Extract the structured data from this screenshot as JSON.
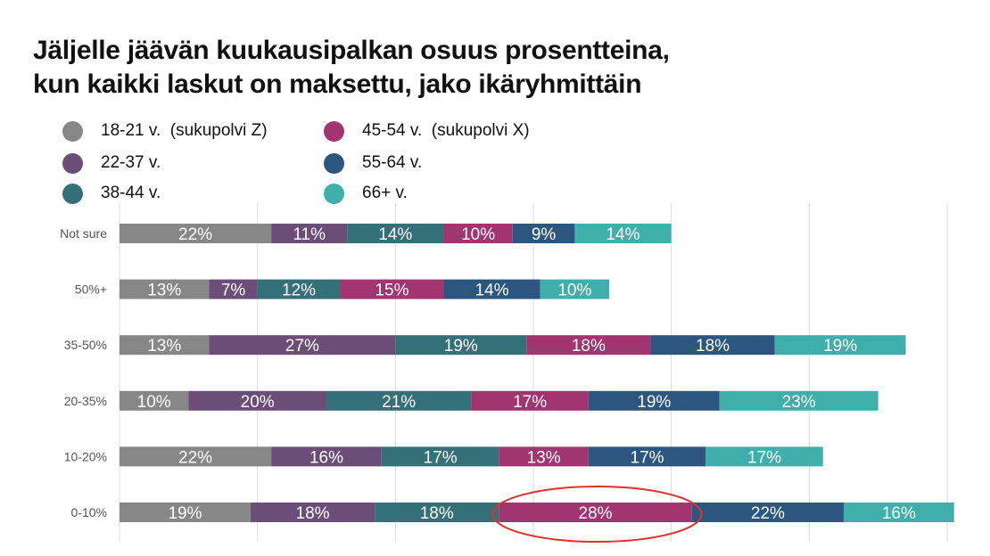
{
  "title": {
    "line1": "Jäljelle jäävän kuukausipalkan osuus prosentteina,",
    "line2": "kun kaikki laskut on maksettu, jako ikäryhmittäin"
  },
  "legend": [
    {
      "label": "18-21 v.  (sukupolvi Z)",
      "color": "#878787"
    },
    {
      "label": "22-37 v.",
      "color": "#6b4d78"
    },
    {
      "label": "38-44 v.",
      "color": "#347077"
    },
    {
      "label": "45-54 v.  (sukupolvi X)",
      "color": "#a33472"
    },
    {
      "label": "55-64 v.",
      "color": "#2d567e"
    },
    {
      "label": "66+ v.",
      "color": "#3fafab"
    }
  ],
  "annotation": {
    "type": "red-ellipse",
    "target": "0-10% / 45-54 v.",
    "color": "#e0302e"
  },
  "chart_data": {
    "type": "bar",
    "orientation": "horizontal",
    "stacked": true,
    "categories": [
      "Not sure",
      "50%+",
      "35-50%",
      "20-35%",
      "10-20%",
      "0-10%"
    ],
    "series": [
      {
        "name": "18-21 v.  (sukupolvi Z)",
        "values": [
          22,
          13,
          13,
          10,
          22,
          19
        ]
      },
      {
        "name": "22-37 v.",
        "values": [
          11,
          7,
          27,
          20,
          16,
          18
        ]
      },
      {
        "name": "38-44 v.",
        "values": [
          14,
          12,
          19,
          21,
          17,
          18
        ]
      },
      {
        "name": "45-54 v.  (sukupolvi X)",
        "values": [
          10,
          15,
          18,
          17,
          13,
          28
        ]
      },
      {
        "name": "55-64 v.",
        "values": [
          9,
          14,
          18,
          19,
          17,
          22
        ]
      },
      {
        "name": "66+ v.",
        "values": [
          14,
          10,
          19,
          23,
          17,
          16
        ]
      }
    ],
    "value_suffix": "%",
    "xlim": [
      0,
      121
    ],
    "grid": true
  }
}
